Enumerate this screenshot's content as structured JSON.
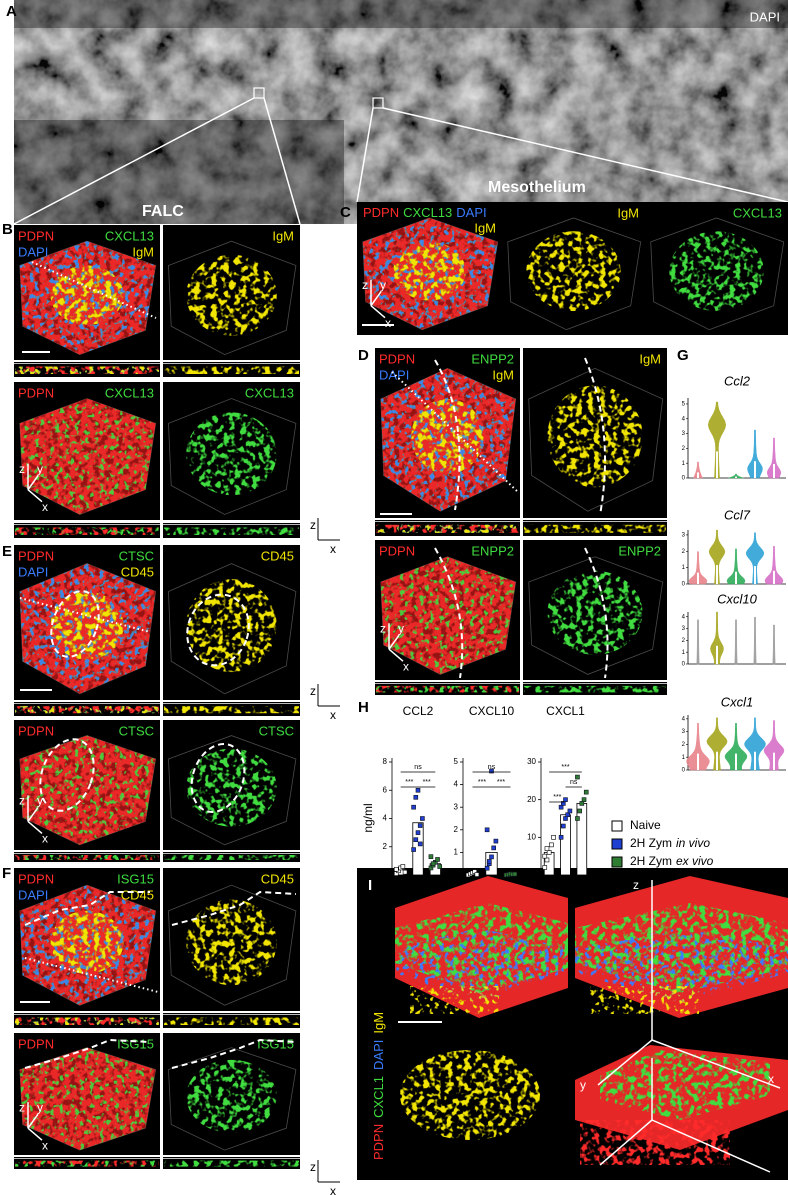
{
  "channel_colors": {
    "PDPN": "#ff2b2b",
    "CXCL13": "#3fdc3f",
    "ENPP2": "#3fdc3f",
    "CTSC": "#3fdc3f",
    "ISG15": "#3fdc3f",
    "CXCL1": "#3fdc3f",
    "DAPI": "#3a7cff",
    "IgM": "#f0e400",
    "CD45": "#f0e400"
  },
  "panels": {
    "A": {
      "label": "A",
      "channel": "DAPI",
      "regions": [
        "FALC",
        "Mesothelium"
      ]
    },
    "B": {
      "label": "B",
      "tiles": [
        {
          "labels": [
            "PDPN",
            "CXCL13",
            "DAPI",
            "IgM"
          ]
        },
        {
          "labels": [
            "IgM"
          ]
        },
        {
          "labels": [
            "PDPN",
            "CXCL13"
          ]
        },
        {
          "labels": [
            "CXCL13"
          ]
        }
      ],
      "axes3d": [
        "z",
        "y",
        "x"
      ],
      "ortho_axes": [
        "z",
        "x"
      ]
    },
    "C": {
      "label": "C",
      "tiles": [
        {
          "labels": [
            "PDPN",
            "CXCL13",
            "DAPI",
            "IgM"
          ]
        },
        {
          "labels": [
            "IgM"
          ]
        },
        {
          "labels": [
            "CXCL13"
          ]
        }
      ],
      "axes3d": [
        "z",
        "y",
        "x"
      ]
    },
    "D": {
      "label": "D",
      "tiles": [
        {
          "labels": [
            "PDPN",
            "ENPP2",
            "DAPI",
            "IgM"
          ]
        },
        {
          "labels": [
            "IgM"
          ]
        },
        {
          "labels": [
            "PDPN",
            "ENPP2"
          ]
        },
        {
          "labels": [
            "ENPP2"
          ]
        }
      ],
      "axes3d": [
        "z",
        "y",
        "x"
      ]
    },
    "E": {
      "label": "E",
      "tiles": [
        {
          "labels": [
            "PDPN",
            "CTSC",
            "DAPI",
            "CD45"
          ]
        },
        {
          "labels": [
            "CD45"
          ]
        },
        {
          "labels": [
            "PDPN",
            "CTSC"
          ]
        },
        {
          "labels": [
            "CTSC"
          ]
        }
      ],
      "axes3d": [
        "z",
        "y",
        "x"
      ],
      "ortho_axes": [
        "z",
        "x"
      ]
    },
    "F": {
      "label": "F",
      "tiles": [
        {
          "labels": [
            "PDPN",
            "ISG15",
            "DAPI",
            "CD45"
          ]
        },
        {
          "labels": [
            "CD45"
          ]
        },
        {
          "labels": [
            "PDPN",
            "ISG15"
          ]
        },
        {
          "labels": [
            "ISG15"
          ]
        }
      ],
      "axes3d": [
        "z",
        "y",
        "x"
      ],
      "ortho_axes": [
        "z",
        "x"
      ]
    },
    "G": {
      "label": "G",
      "plots": [
        {
          "gene": "Ccl2",
          "ylim": [
            0,
            5.4
          ],
          "yticks": [
            0,
            1,
            2,
            3,
            4,
            5
          ]
        },
        {
          "gene": "Ccl7",
          "ylim": [
            0,
            3.3
          ],
          "yticks": [
            0,
            1,
            2,
            3
          ]
        },
        {
          "gene": "Cxcl10",
          "ylim": [
            0,
            4.4
          ],
          "yticks": [
            0,
            1,
            2,
            3,
            4
          ]
        },
        {
          "gene": "Cxcl1",
          "ylim": [
            0,
            4.3
          ],
          "yticks": [
            0,
            1,
            2,
            3,
            4
          ]
        }
      ]
    },
    "H": {
      "label": "H",
      "legend": [
        {
          "text": "Naive",
          "color": "#ffffff"
        },
        {
          "text": "2H Zym",
          "emphasis": "in vivo",
          "color": "#1f3fd0"
        },
        {
          "text": "2H Zym",
          "emphasis": "ex vivo",
          "color": "#2e7d32"
        }
      ]
    },
    "I": {
      "label": "I",
      "channels": [
        "PDPN",
        "CXCL1",
        "DAPI",
        "IgM"
      ],
      "axes3d": [
        "z",
        "y",
        "x"
      ]
    }
  },
  "chart_data": [
    {
      "type": "bar",
      "title": "CCL2",
      "ylabel": "ng/ml",
      "ylim": [
        0,
        8
      ],
      "yticks": [
        0,
        2,
        4,
        6,
        8
      ],
      "values": [
        0.4,
        3.7,
        0.8
      ],
      "points": [
        [
          0.1,
          0.3,
          0.5,
          0.6,
          0.2,
          0.4
        ],
        [
          1.8,
          2.5,
          3.0,
          3.5,
          4.0,
          4.8,
          5.5,
          6.0,
          2.2
        ],
        [
          0.5,
          0.7,
          0.9,
          1.1,
          0.6,
          1.3,
          0.8
        ]
      ],
      "comparisons": [
        {
          "groups": [
            0,
            2
          ],
          "label": "ns"
        },
        {
          "groups": [
            0,
            1
          ],
          "label": "***"
        },
        {
          "groups": [
            1,
            2
          ],
          "label": "***"
        }
      ]
    },
    {
      "type": "bar",
      "title": "CXCL10",
      "ylim": [
        0,
        5
      ],
      "yticks": [
        0,
        1,
        2,
        3,
        4,
        5
      ],
      "values": [
        0.1,
        1.0,
        0.03
      ],
      "points": [
        [
          0,
          0.05,
          0.1,
          0.15,
          0.02
        ],
        [
          0.3,
          0.5,
          0.8,
          1.2,
          1.5,
          2.0,
          0.6,
          4.6
        ],
        [
          0,
          0.02,
          0.05,
          0.03,
          0.04
        ]
      ],
      "comparisons": [
        {
          "groups": [
            0,
            2
          ],
          "label": "ns"
        },
        {
          "groups": [
            0,
            1
          ],
          "label": "***"
        },
        {
          "groups": [
            1,
            2
          ],
          "label": "***"
        }
      ]
    },
    {
      "type": "bar",
      "title": "CXCL1",
      "ylim": [
        0,
        30
      ],
      "yticks": [
        0,
        10,
        20,
        30
      ],
      "values": [
        6,
        16,
        19
      ],
      "points": [
        [
          2,
          4,
          6,
          8,
          10,
          5,
          7
        ],
        [
          10,
          13,
          15,
          16,
          17,
          18,
          19,
          20
        ],
        [
          15,
          17,
          19,
          20,
          22,
          26
        ]
      ],
      "comparisons": [
        {
          "groups": [
            0,
            2
          ],
          "label": "***"
        },
        {
          "groups": [
            1,
            2
          ],
          "label": "ns"
        },
        {
          "groups": [
            0,
            1
          ],
          "label": "***"
        }
      ]
    }
  ]
}
